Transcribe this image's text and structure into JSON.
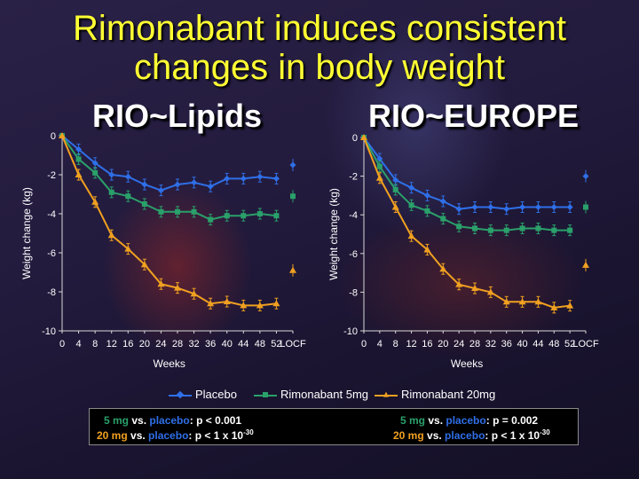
{
  "slide": {
    "title_line1": "Rimonabant induces consistent",
    "title_line2": "changes in body weight"
  },
  "colors": {
    "placebo": "#2f6fe8",
    "rimonabant_5mg": "#2aa06a",
    "rimonabant_20mg": "#f0a020",
    "title": "#ffff33"
  },
  "legend": {
    "placebo": "Placebo",
    "r5": "Rimonabant 5mg",
    "r20": "Rimonabant 20mg"
  },
  "stats": {
    "left_line1": {
      "dose": "5 mg",
      "vs": " vs. ",
      "comp": "placebo",
      "p": ": p < 0.001"
    },
    "left_line2": {
      "dose": "20 mg",
      "vs": " vs. ",
      "comp": "placebo",
      "p": ": p < 1 x 10",
      "exp": "-30"
    },
    "right_line1": {
      "dose": "5 mg",
      "vs": " vs. ",
      "comp": "placebo",
      "p": ": p = 0.002"
    },
    "right_line2": {
      "dose": "20 mg",
      "vs": " vs. ",
      "comp": "placebo",
      "p": ": p < 1 x 10",
      "exp": "-30"
    }
  },
  "chart_data": [
    {
      "type": "line",
      "title": "RIO~Lipids",
      "xlabel": "Weeks",
      "ylabel": "Weight change (kg)",
      "x_ticks": [
        "0",
        "4",
        "8",
        "12",
        "16",
        "20",
        "24",
        "28",
        "32",
        "36",
        "40",
        "44",
        "48",
        "52",
        "LOCF"
      ],
      "y_ticks": [
        "0",
        "-2",
        "-4",
        "-6",
        "-8",
        "-10"
      ],
      "ylim": [
        -10,
        0
      ],
      "legend_position": "bottom",
      "x": [
        0,
        4,
        8,
        12,
        16,
        20,
        24,
        28,
        32,
        36,
        40,
        44,
        48,
        52
      ],
      "series": [
        {
          "name": "Placebo",
          "values": [
            0,
            -0.7,
            -1.4,
            -2.0,
            -2.1,
            -2.5,
            -2.8,
            -2.5,
            -2.4,
            -2.6,
            -2.2,
            -2.2,
            -2.1,
            -2.2
          ],
          "locf": -1.5
        },
        {
          "name": "Rimonabant 5mg",
          "values": [
            0,
            -1.2,
            -1.9,
            -2.9,
            -3.1,
            -3.5,
            -3.9,
            -3.9,
            -3.9,
            -4.3,
            -4.1,
            -4.1,
            -4.0,
            -4.1
          ],
          "locf": -3.1
        },
        {
          "name": "Rimonabant 20mg",
          "values": [
            0,
            -2.0,
            -3.4,
            -5.1,
            -5.8,
            -6.6,
            -7.6,
            -7.8,
            -8.1,
            -8.6,
            -8.5,
            -8.7,
            -8.7,
            -8.6
          ],
          "locf": -6.9
        }
      ]
    },
    {
      "type": "line",
      "title": "RIO~EUROPE",
      "xlabel": "Weeks",
      "ylabel": "Weight change (kg)",
      "x_ticks": [
        "0",
        "4",
        "8",
        "12",
        "16",
        "20",
        "24",
        "28",
        "32",
        "36",
        "40",
        "44",
        "48",
        "52",
        "LOCF"
      ],
      "y_ticks": [
        "0",
        "-2",
        "-4",
        "-6",
        "-8",
        "-10"
      ],
      "ylim": [
        -10,
        0
      ],
      "legend_position": "bottom",
      "x": [
        0,
        4,
        8,
        12,
        16,
        20,
        24,
        28,
        32,
        36,
        40,
        44,
        48,
        52
      ],
      "series": [
        {
          "name": "Placebo",
          "values": [
            0,
            -1.1,
            -2.2,
            -2.6,
            -3.0,
            -3.3,
            -3.7,
            -3.6,
            -3.6,
            -3.7,
            -3.6,
            -3.6,
            -3.6,
            -3.6
          ],
          "locf": -2.0
        },
        {
          "name": "Rimonabant 5mg",
          "values": [
            0,
            -1.5,
            -2.7,
            -3.5,
            -3.8,
            -4.2,
            -4.6,
            -4.7,
            -4.8,
            -4.8,
            -4.7,
            -4.7,
            -4.8,
            -4.8
          ],
          "locf": -3.6
        },
        {
          "name": "Rimonabant 20mg",
          "values": [
            0,
            -2.1,
            -3.6,
            -5.1,
            -5.8,
            -6.8,
            -7.6,
            -7.8,
            -8.0,
            -8.5,
            -8.5,
            -8.5,
            -8.8,
            -8.7
          ],
          "locf": -6.6
        }
      ]
    }
  ]
}
